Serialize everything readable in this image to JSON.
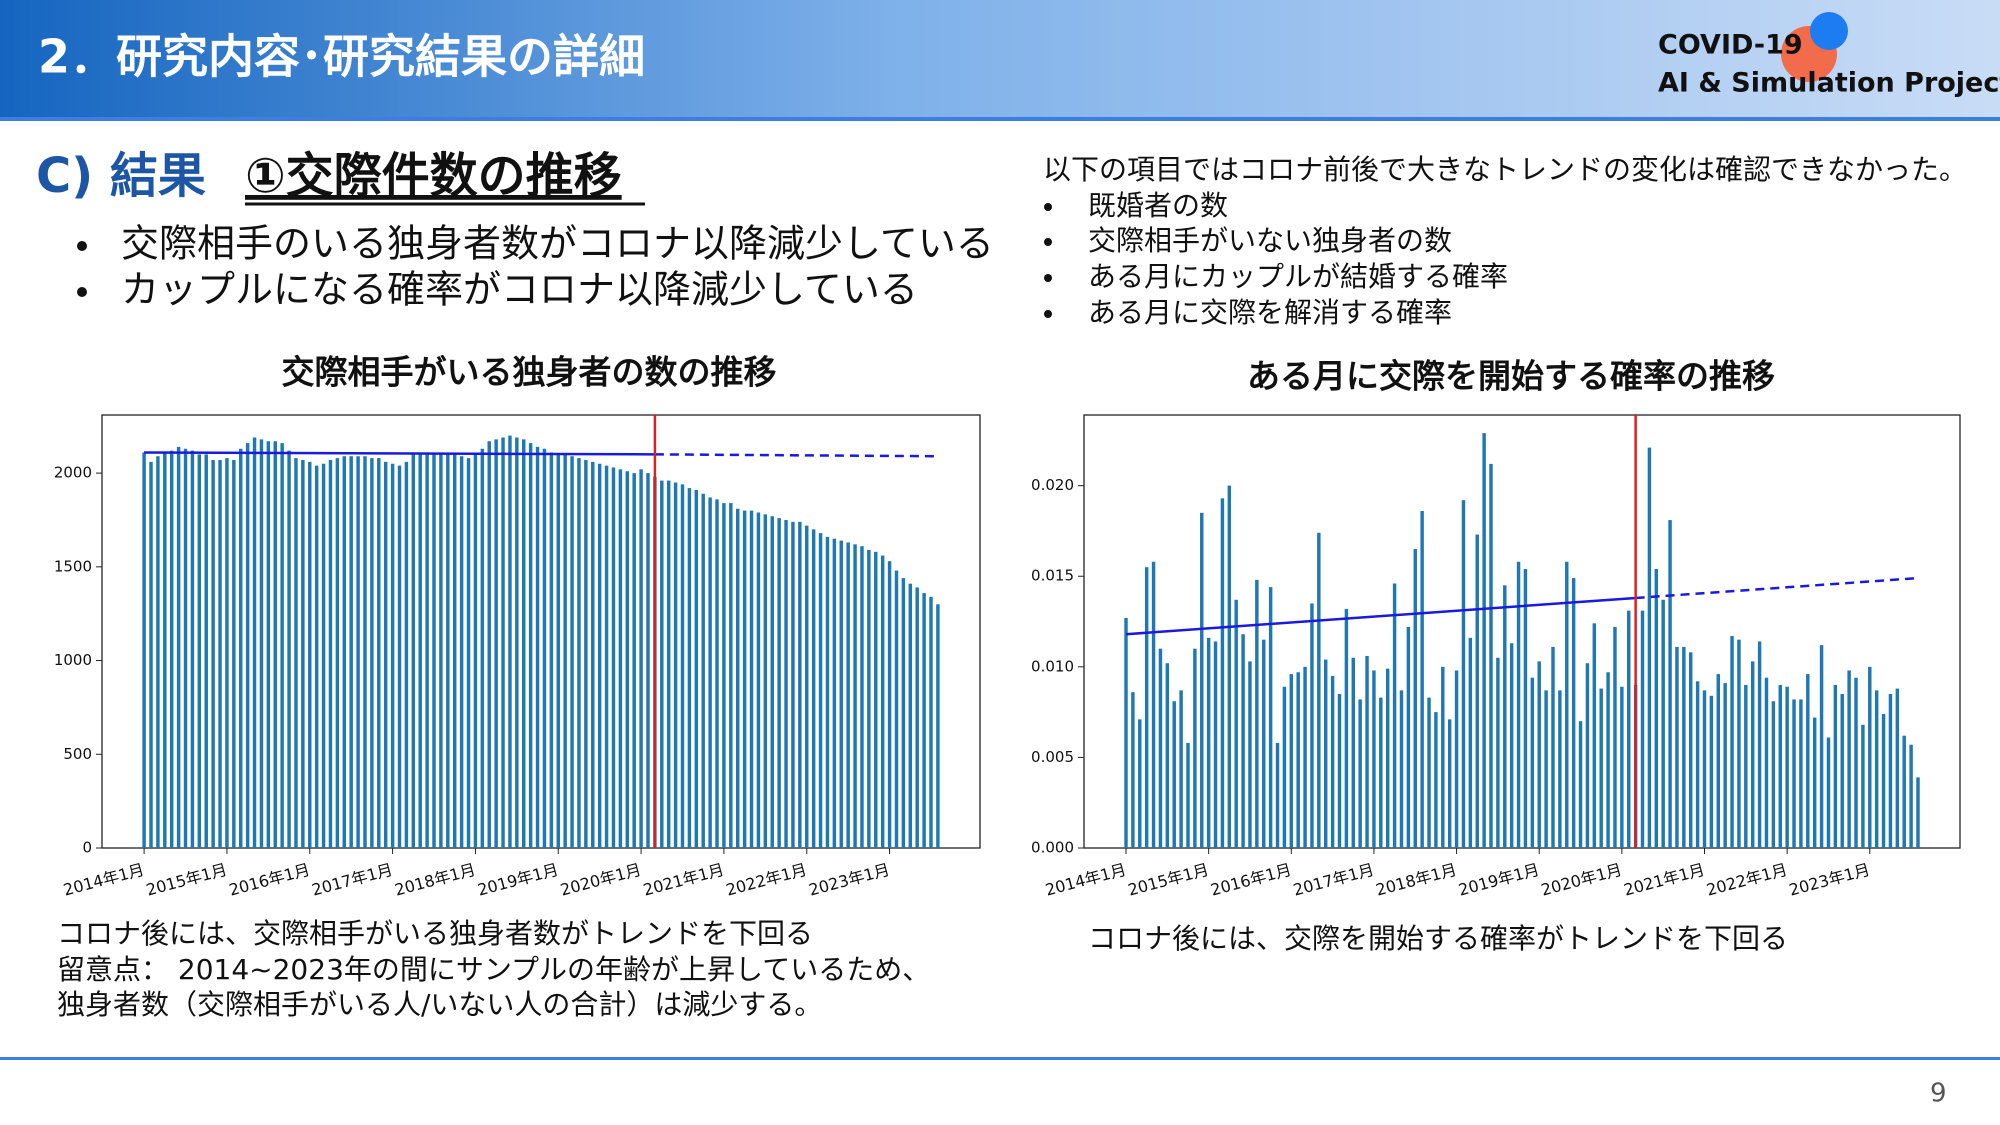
{
  "header": {
    "title": "2．研究内容･研究結果の詳細",
    "logo": [
      "COVID-19",
      "AI & Simulation Project"
    ]
  },
  "section": {
    "label": "C) 結果",
    "heading": "①交際件数の推移"
  },
  "left_bullets": [
    "交際相手のいる独身者数がコロナ以降減少している",
    "カップルになる確率がコロナ以降減少している"
  ],
  "right_note": {
    "lead": "以下の項目ではコロナ前後で大きなトレンドの変化は確認できなかった。",
    "items": [
      "既婚者の数",
      "交際相手がいない独身者の数",
      "ある月にカップルが結婚する確率",
      "ある月に交際を解消する確率"
    ]
  },
  "captions": {
    "left": [
      "コロナ後には、交際相手がいる独身者数がトレンドを下回る",
      "留意点： 2014~2023年の間にサンプルの年齢が上昇しているため、",
      "独身者数（交際相手がいる人/いない人の合計）は減少する。"
    ],
    "right": [
      "コロナ後には、交際を開始する確率がトレンドを下回る"
    ]
  },
  "page_number": "9",
  "chart_data": [
    {
      "type": "bar",
      "title": "交際相手がいる独身者の数の推移",
      "color": "#1f77b4",
      "categories": [
        "2014年1月",
        null,
        null,
        null,
        null,
        null,
        null,
        null,
        null,
        null,
        null,
        null,
        "2015年1月",
        null,
        null,
        null,
        null,
        null,
        null,
        null,
        null,
        null,
        null,
        null,
        "2016年1月",
        null,
        null,
        null,
        null,
        null,
        null,
        null,
        null,
        null,
        null,
        null,
        "2017年1月",
        null,
        null,
        null,
        null,
        null,
        null,
        null,
        null,
        null,
        null,
        null,
        "2018年1月",
        null,
        null,
        null,
        null,
        null,
        null,
        null,
        null,
        null,
        null,
        null,
        "2019年1月",
        null,
        null,
        null,
        null,
        null,
        null,
        null,
        null,
        null,
        null,
        null,
        "2020年1月",
        null,
        null,
        null,
        null,
        null,
        null,
        null,
        null,
        null,
        null,
        null,
        "2021年1月",
        null,
        null,
        null,
        null,
        null,
        null,
        null,
        null,
        null,
        null,
        null,
        "2022年1月",
        null,
        null,
        null,
        null,
        null,
        null,
        null,
        null,
        null,
        null,
        null,
        "2023年1月",
        null,
        null,
        null,
        null,
        null,
        null,
        null
      ],
      "values": [
        2110,
        2060,
        2090,
        2110,
        2120,
        2140,
        2130,
        2120,
        2100,
        2100,
        2070,
        2070,
        2080,
        2070,
        2130,
        2160,
        2190,
        2180,
        2170,
        2170,
        2160,
        2120,
        2080,
        2070,
        2060,
        2040,
        2050,
        2070,
        2080,
        2090,
        2090,
        2090,
        2090,
        2080,
        2080,
        2060,
        2050,
        2040,
        2060,
        2100,
        2110,
        2110,
        2110,
        2110,
        2100,
        2100,
        2090,
        2080,
        2100,
        2130,
        2170,
        2180,
        2190,
        2200,
        2190,
        2180,
        2160,
        2140,
        2130,
        2110,
        2100,
        2100,
        2090,
        2080,
        2070,
        2060,
        2050,
        2040,
        2030,
        2020,
        2010,
        2000,
        2020,
        2000,
        1980,
        1960,
        1960,
        1950,
        1940,
        1920,
        1910,
        1890,
        1870,
        1860,
        1840,
        1840,
        1810,
        1800,
        1800,
        1790,
        1780,
        1770,
        1760,
        1750,
        1740,
        1740,
        1720,
        1700,
        1680,
        1660,
        1650,
        1640,
        1630,
        1620,
        1610,
        1590,
        1580,
        1560,
        1530,
        1480,
        1440,
        1410,
        1390,
        1360,
        1340,
        1300
      ],
      "ylim": [
        0,
        2310
      ],
      "yticks": [
        0,
        500,
        1000,
        1500,
        2000
      ],
      "vline": 74,
      "vline_color": "#e02020",
      "trend": {
        "from": 2110,
        "at_vline": 2100,
        "to": 2090,
        "color": "#1a1adc"
      }
    },
    {
      "type": "bar",
      "title": "ある月に交際を開始する確率の推移",
      "color": "#1f77b4",
      "categories": [
        "2014年1月",
        null,
        null,
        null,
        null,
        null,
        null,
        null,
        null,
        null,
        null,
        null,
        "2015年1月",
        null,
        null,
        null,
        null,
        null,
        null,
        null,
        null,
        null,
        null,
        null,
        "2016年1月",
        null,
        null,
        null,
        null,
        null,
        null,
        null,
        null,
        null,
        null,
        null,
        "2017年1月",
        null,
        null,
        null,
        null,
        null,
        null,
        null,
        null,
        null,
        null,
        null,
        "2018年1月",
        null,
        null,
        null,
        null,
        null,
        null,
        null,
        null,
        null,
        null,
        null,
        "2019年1月",
        null,
        null,
        null,
        null,
        null,
        null,
        null,
        null,
        null,
        null,
        null,
        "2020年1月",
        null,
        null,
        null,
        null,
        null,
        null,
        null,
        null,
        null,
        null,
        null,
        "2021年1月",
        null,
        null,
        null,
        null,
        null,
        null,
        null,
        null,
        null,
        null,
        null,
        "2022年1月",
        null,
        null,
        null,
        null,
        null,
        null,
        null,
        null,
        null,
        null,
        null,
        "2023年1月",
        null,
        null,
        null,
        null,
        null,
        null,
        null
      ],
      "values": [
        0.0127,
        0.0086,
        0.0071,
        0.0155,
        0.0158,
        0.011,
        0.0102,
        0.0081,
        0.0087,
        0.0058,
        0.011,
        0.0185,
        0.0116,
        0.0114,
        0.0193,
        0.02,
        0.0137,
        0.0118,
        0.0103,
        0.0148,
        0.0115,
        0.0144,
        0.0058,
        0.0089,
        0.0096,
        0.0097,
        0.01,
        0.0135,
        0.0174,
        0.0104,
        0.0095,
        0.0085,
        0.0132,
        0.0105,
        0.0082,
        0.0106,
        0.0098,
        0.0083,
        0.0099,
        0.0146,
        0.0087,
        0.0122,
        0.0165,
        0.0186,
        0.0083,
        0.0075,
        0.01,
        0.0071,
        0.0098,
        0.0192,
        0.0116,
        0.0173,
        0.0229,
        0.0212,
        0.0105,
        0.0145,
        0.0113,
        0.0158,
        0.0154,
        0.0094,
        0.0103,
        0.0087,
        0.0111,
        0.0087,
        0.0158,
        0.0149,
        0.007,
        0.0102,
        0.0124,
        0.0088,
        0.0097,
        0.0122,
        0.0089,
        0.0131,
        0.009,
        0.0131,
        0.0221,
        0.0154,
        0.0137,
        0.0181,
        0.0111,
        0.0111,
        0.0108,
        0.0092,
        0.0087,
        0.0084,
        0.0096,
        0.0091,
        0.0117,
        0.0115,
        0.009,
        0.0103,
        0.0114,
        0.0094,
        0.0081,
        0.009,
        0.0089,
        0.0082,
        0.0082,
        0.0096,
        0.0072,
        0.0112,
        0.0061,
        0.009,
        0.0085,
        0.0098,
        0.0094,
        0.0068,
        0.01,
        0.0087,
        0.0074,
        0.0085,
        0.0088,
        0.0062,
        0.0057,
        0.0039
      ],
      "ylim": [
        0,
        0.0239
      ],
      "yticks": [
        {
          "value": 0,
          "label": "0.000"
        },
        {
          "value": 0.005,
          "label": "0.005"
        },
        {
          "value": 0.01,
          "label": "0.010"
        },
        {
          "value": 0.015,
          "label": "0.015"
        },
        {
          "value": 0.02,
          "label": "0.020"
        }
      ],
      "vline": 74,
      "vline_color": "#e02020",
      "trend": {
        "from": 0.0118,
        "at_vline": 0.0138,
        "to": 0.0149,
        "color": "#1a1adc"
      }
    }
  ]
}
